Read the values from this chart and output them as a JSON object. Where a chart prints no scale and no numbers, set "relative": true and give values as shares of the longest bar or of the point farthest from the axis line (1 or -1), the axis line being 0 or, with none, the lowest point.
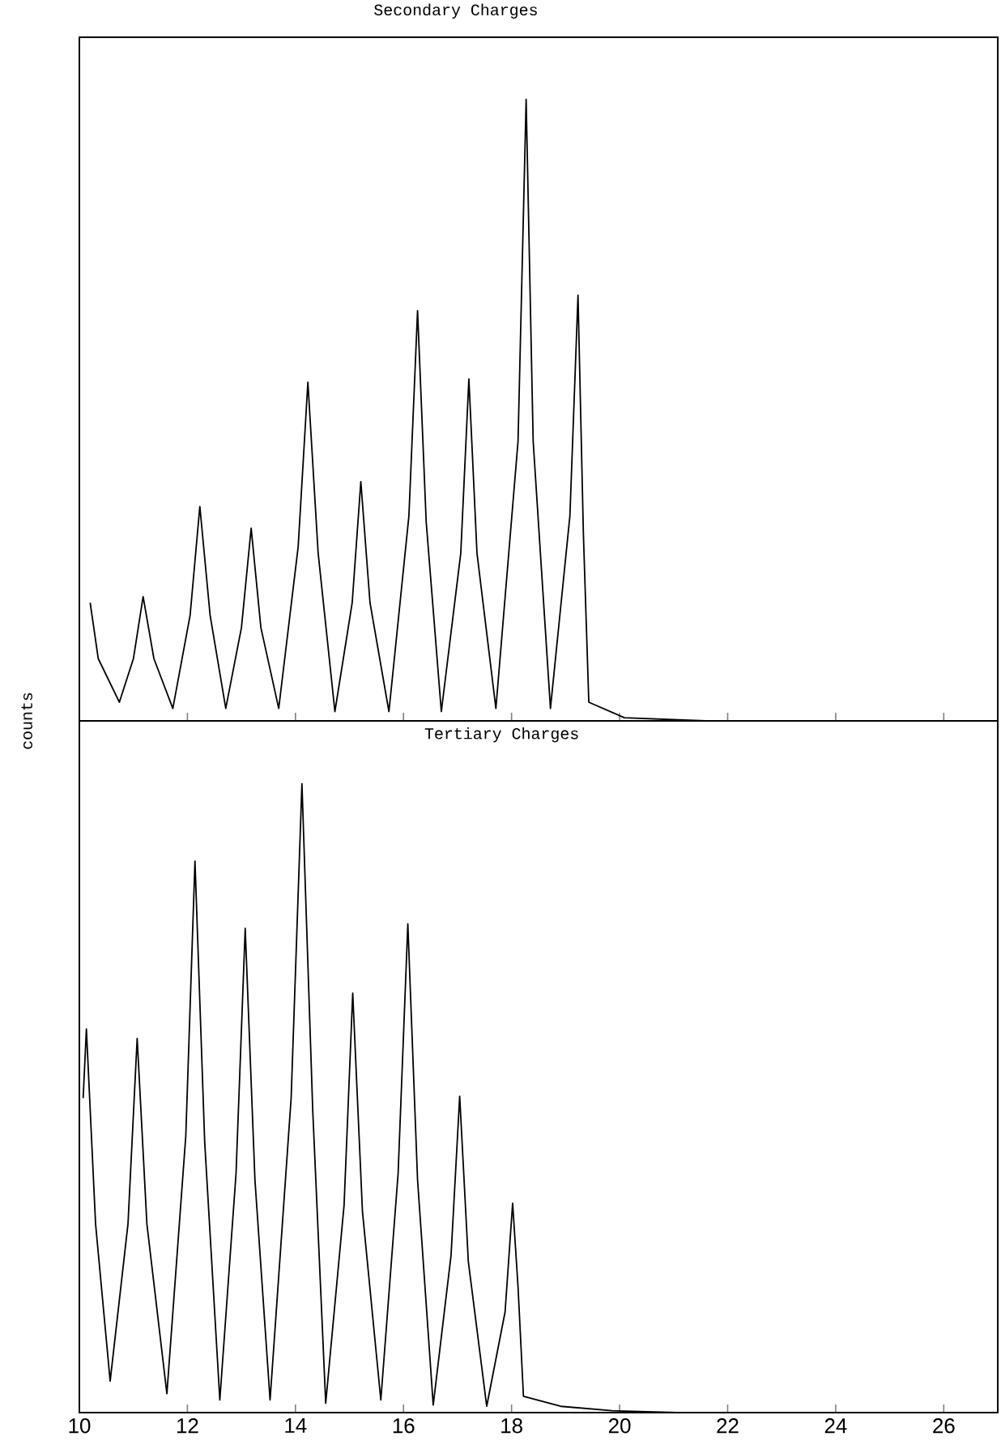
{
  "chart_data": [
    {
      "type": "line",
      "title": "Secondary Charges",
      "relative": true,
      "xlim": [
        10,
        27
      ],
      "xticks": [
        10,
        12,
        14,
        16,
        18,
        20,
        22,
        24,
        26
      ],
      "tick_labels": false,
      "series": [
        {
          "color": "#000000",
          "x": [
            10.2,
            10.35,
            10.74,
            11.0,
            11.18,
            11.38,
            11.73,
            12.05,
            12.23,
            12.42,
            12.71,
            13.0,
            13.18,
            13.36,
            13.69,
            14.05,
            14.23,
            14.42,
            14.73,
            15.05,
            15.21,
            15.38,
            15.73,
            16.1,
            16.26,
            16.42,
            16.7,
            17.06,
            17.21,
            17.36,
            17.71,
            18.12,
            18.27,
            18.4,
            18.72,
            19.08,
            19.23,
            19.33,
            19.43,
            20.09,
            21.6,
            27
          ],
          "values": [
            0.19,
            0.1,
            0.03,
            0.1,
            0.2,
            0.1,
            0.02,
            0.17,
            0.345,
            0.17,
            0.02,
            0.15,
            0.31,
            0.15,
            0.02,
            0.28,
            0.545,
            0.27,
            0.015,
            0.19,
            0.385,
            0.19,
            0.015,
            0.33,
            0.66,
            0.32,
            0.015,
            0.27,
            0.55,
            0.27,
            0.02,
            0.45,
            1.0,
            0.45,
            0.02,
            0.33,
            0.685,
            0.3,
            0.03,
            0.005,
            0,
            0
          ]
        }
      ]
    },
    {
      "type": "line",
      "title": "Tertiary Charges",
      "ylabel": "counts",
      "relative": true,
      "xlim": [
        10,
        27
      ],
      "xticks": [
        10,
        12,
        14,
        16,
        18,
        20,
        22,
        24,
        26
      ],
      "tick_labels": "x",
      "series": [
        {
          "color": "#000000",
          "x": [
            10.07,
            10.13,
            10.3,
            10.57,
            10.9,
            11.07,
            11.25,
            11.62,
            11.97,
            12.14,
            12.32,
            12.6,
            12.9,
            13.07,
            13.25,
            13.53,
            13.92,
            14.12,
            14.32,
            14.56,
            14.9,
            15.06,
            15.24,
            15.58,
            15.9,
            16.08,
            16.26,
            16.55,
            16.88,
            17.04,
            17.2,
            17.54,
            17.88,
            18.02,
            18.12,
            18.22,
            18.91,
            19.86,
            21.06,
            27
          ],
          "values": [
            0.5,
            0.61,
            0.3,
            0.05,
            0.3,
            0.595,
            0.3,
            0.03,
            0.44,
            0.877,
            0.43,
            0.02,
            0.38,
            0.77,
            0.37,
            0.02,
            0.5,
            1.0,
            0.48,
            0.015,
            0.33,
            0.667,
            0.32,
            0.02,
            0.38,
            0.777,
            0.37,
            0.012,
            0.25,
            0.503,
            0.24,
            0.01,
            0.16,
            0.333,
            0.2,
            0.026,
            0.01,
            0.003,
            0,
            0
          ]
        }
      ]
    }
  ]
}
